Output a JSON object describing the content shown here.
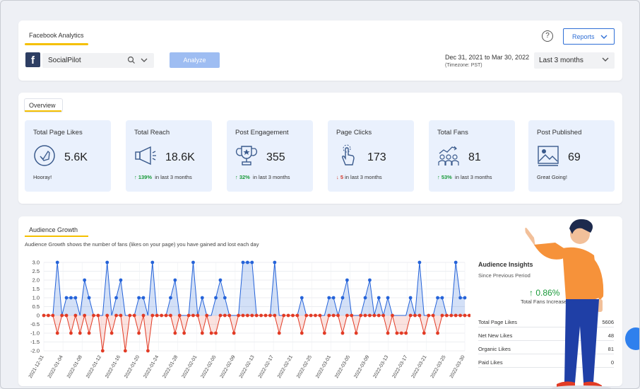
{
  "header": {
    "tab_title": "Facebook Analytics",
    "account_name": "SocialPilot",
    "analyze_label": "Analyze",
    "reports_label": "Reports",
    "help_label": "?",
    "date_range": "Dec 31, 2021 to Mar 30, 2022",
    "timezone": "(Timezone: PST)",
    "period": "Last 3 months"
  },
  "overview": {
    "title": "Overview",
    "stats": [
      {
        "label": "Total Page Likes",
        "value": "5.6K",
        "foot": "Hooray!",
        "icon": "thumbs-up-icon"
      },
      {
        "label": "Total Reach",
        "value": "18.6K",
        "trend": "up",
        "pct": "139%",
        "foot": "in last 3 months",
        "icon": "megaphone-icon"
      },
      {
        "label": "Post Engagement",
        "value": "355",
        "trend": "up",
        "pct": "32%",
        "foot": "in last 3 months",
        "icon": "trophy-icon"
      },
      {
        "label": "Page Clicks",
        "value": "173",
        "trend": "down",
        "pct": "5",
        "foot": "in last 3 months",
        "icon": "click-hand-icon"
      },
      {
        "label": "Total Fans",
        "value": "81",
        "trend": "up",
        "pct": "53%",
        "foot": "in last 3 months",
        "icon": "group-growth-icon"
      },
      {
        "label": "Post Published",
        "value": "69",
        "foot": "Great Going!",
        "icon": "image-post-icon"
      }
    ]
  },
  "audience": {
    "title": "Audience Growth",
    "description": "Audience Growth shows the number of fans (likes on your page) you have gained and lost each day",
    "insights": {
      "title": "Audience Insights",
      "subtitle": "Since Previous Period",
      "pct": "↑ 0.86%",
      "pct_label": "Total Fans Increase",
      "rows": [
        {
          "k": "Total Page Likes",
          "v": "5606"
        },
        {
          "k": "Net New Likes",
          "v": "48"
        },
        {
          "k": "Organic Likes",
          "v": "81"
        },
        {
          "k": "Paid Likes",
          "v": "0"
        }
      ]
    }
  },
  "colors": {
    "gain": "#2563d9",
    "loss": "#e23b25",
    "accent": "#f5c000",
    "primary": "#2f6fd6"
  },
  "chart_data": {
    "type": "area",
    "yticks": [
      "3.0",
      "2.5",
      "2.0",
      "1.5",
      "1.0",
      "0.5",
      "0",
      "-0.5",
      "-1.0",
      "-1.5",
      "-2.0"
    ],
    "ylim": [
      -2,
      3
    ],
    "xticks": [
      "2021-12-31",
      "2022-01-04",
      "2022-01-08",
      "2022-01-12",
      "2022-01-16",
      "2022-01-20",
      "2022-01-24",
      "2022-01-28",
      "2022-02-01",
      "2022-02-05",
      "2022-02-09",
      "2022-02-13",
      "2022-02-17",
      "2022-02-21",
      "2022-02-25",
      "2022-03-01",
      "2022-03-05",
      "2022-03-09",
      "2022-03-13",
      "2022-03-17",
      "2022-03-21",
      "2022-03-25",
      "2022-03-30"
    ],
    "series": [
      {
        "name": "gained",
        "values": [
          0,
          0,
          0,
          3,
          0,
          1,
          1,
          1,
          0,
          2,
          1,
          0,
          0,
          0,
          3,
          0,
          1,
          2,
          0,
          0,
          0,
          1,
          1,
          0,
          3,
          0,
          0,
          0,
          1,
          2,
          0,
          0,
          0,
          3,
          0,
          1,
          0,
          0,
          1,
          2,
          1,
          0,
          0,
          0,
          3,
          3,
          3,
          0,
          0,
          0,
          0,
          3,
          0,
          0,
          0,
          0,
          0,
          1,
          0,
          0,
          0,
          0,
          0,
          1,
          1,
          0,
          1,
          2,
          0,
          0,
          0,
          1,
          2,
          0,
          1,
          0,
          1,
          0,
          0,
          0,
          0,
          1,
          0,
          3,
          0,
          0,
          0,
          1,
          1,
          0,
          0,
          3,
          1,
          1
        ]
      },
      {
        "name": "lost",
        "values": [
          0,
          0,
          0,
          -1,
          0,
          0,
          -1,
          0,
          -1,
          0,
          -1,
          0,
          0,
          -2,
          0,
          -1,
          0,
          0,
          -2,
          0,
          0,
          -1,
          0,
          -2,
          0,
          0,
          0,
          0,
          0,
          -1,
          0,
          -1,
          0,
          0,
          0,
          -1,
          0,
          -1,
          -1,
          0,
          0,
          0,
          -1,
          0,
          0,
          0,
          0,
          0,
          0,
          0,
          0,
          0,
          -1,
          0,
          0,
          0,
          0,
          -1,
          0,
          0,
          0,
          0,
          -1,
          0,
          0,
          0,
          -1,
          0,
          0,
          -1,
          0,
          0,
          0,
          0,
          0,
          0,
          -1,
          0,
          -1,
          -1,
          -1,
          0,
          0,
          0,
          -1,
          0,
          0,
          -1,
          0,
          0,
          0,
          0,
          0,
          0,
          0
        ]
      }
    ]
  }
}
